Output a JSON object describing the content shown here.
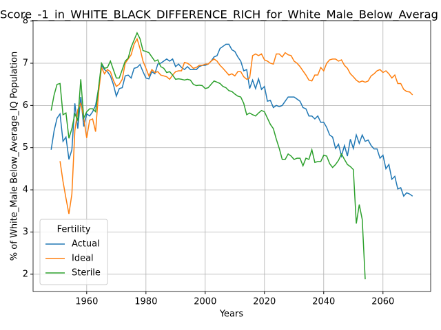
{
  "chart_data": {
    "type": "line",
    "title": "Score_-1_in_WHITE_BLACK_DIFFERENCE_RICH_for_White_Male_Below_Averag",
    "x_label": "Years",
    "y_label": "% of White_Male Below_Average_IQ Population",
    "x": [
      1948,
      1949,
      1950,
      1951,
      1952,
      1953,
      1954,
      1955,
      1956,
      1957,
      1958,
      1959,
      1960,
      1961,
      1962,
      1963,
      1964,
      1965,
      1966,
      1967,
      1968,
      1969,
      1970,
      1971,
      1972,
      1973,
      1974,
      1975,
      1976,
      1977,
      1978,
      1979,
      1980,
      1981,
      1982,
      1983,
      1984,
      1985,
      1986,
      1987,
      1988,
      1989,
      1990,
      1991,
      1992,
      1993,
      1994,
      1995,
      1996,
      1997,
      1998,
      1999,
      2000,
      2001,
      2002,
      2003,
      2004,
      2005,
      2006,
      2007,
      2008,
      2009,
      2010,
      2011,
      2012,
      2013,
      2014,
      2015,
      2016,
      2017,
      2018,
      2019,
      2020,
      2021,
      2022,
      2023,
      2024,
      2025,
      2026,
      2027,
      2028,
      2029,
      2030,
      2031,
      2032,
      2033,
      2034,
      2035,
      2036,
      2037,
      2038,
      2039,
      2040,
      2041,
      2042,
      2043,
      2044,
      2045,
      2046,
      2047,
      2048,
      2049,
      2050,
      2051,
      2052,
      2053,
      2054,
      2055,
      2056,
      2057,
      2058,
      2059,
      2060,
      2061,
      2062,
      2063,
      2064,
      2065,
      2066,
      2067,
      2068,
      2069,
      2070
    ],
    "series": [
      {
        "name": "Actual",
        "color": "#1f77b4",
        "values": [
          4.95,
          5.4,
          5.7,
          5.8,
          5.15,
          5.25,
          4.72,
          4.95,
          6.05,
          5.45,
          6.2,
          5.5,
          5.8,
          5.75,
          5.85,
          6.0,
          6.4,
          6.95,
          6.85,
          6.8,
          6.7,
          6.5,
          6.22,
          6.4,
          6.42,
          6.7,
          6.72,
          6.65,
          6.88,
          6.9,
          6.97,
          6.8,
          6.65,
          6.63,
          6.8,
          6.75,
          6.98,
          7.0,
          7.05,
          7.1,
          7.05,
          7.1,
          6.92,
          6.98,
          6.9,
          6.85,
          6.92,
          6.85,
          6.85,
          6.85,
          6.92,
          6.95,
          6.95,
          6.98,
          7.05,
          7.15,
          7.18,
          7.35,
          7.4,
          7.45,
          7.45,
          7.32,
          7.28,
          7.15,
          7.05,
          6.82,
          6.85,
          6.4,
          6.6,
          6.4,
          6.63,
          6.38,
          6.45,
          6.1,
          6.12,
          5.95,
          6.0,
          5.97,
          6.0,
          6.1,
          6.2,
          6.2,
          6.2,
          6.15,
          6.1,
          5.95,
          5.92,
          5.75,
          5.75,
          5.68,
          5.75,
          5.6,
          5.6,
          5.48,
          5.3,
          5.25,
          4.98,
          5.08,
          4.8,
          5.05,
          4.8,
          5.2,
          4.98,
          5.3,
          5.1,
          5.3,
          5.15,
          5.18,
          5.05,
          4.97,
          4.97,
          4.75,
          4.82,
          4.5,
          4.6,
          4.25,
          4.32,
          4.02,
          4.05,
          3.85,
          3.93,
          3.9,
          3.85
        ]
      },
      {
        "name": "Ideal",
        "color": "#ff7f0e",
        "values": [
          null,
          null,
          null,
          4.68,
          4.2,
          3.8,
          3.43,
          3.9,
          5.4,
          5.9,
          6.05,
          5.7,
          5.23,
          5.65,
          5.68,
          5.38,
          6.3,
          6.9,
          6.75,
          6.85,
          6.8,
          6.6,
          6.45,
          6.5,
          6.62,
          7.0,
          7.1,
          7.2,
          7.45,
          7.58,
          7.35,
          7.05,
          6.88,
          6.7,
          6.85,
          6.78,
          6.8,
          6.72,
          6.7,
          6.68,
          6.62,
          6.72,
          6.8,
          6.82,
          6.82,
          7.02,
          7.0,
          6.95,
          6.88,
          6.9,
          6.95,
          6.95,
          6.98,
          6.98,
          7.05,
          7.1,
          7.05,
          6.95,
          6.88,
          6.8,
          6.72,
          6.75,
          6.7,
          6.8,
          6.8,
          6.68,
          6.62,
          6.65,
          7.18,
          7.22,
          7.18,
          7.22,
          7.08,
          7.05,
          7.0,
          6.98,
          7.22,
          7.22,
          7.15,
          7.25,
          7.2,
          7.18,
          7.05,
          7.0,
          6.92,
          6.82,
          6.72,
          6.6,
          6.58,
          6.72,
          6.72,
          6.9,
          6.82,
          7.0,
          7.08,
          7.1,
          7.1,
          7.05,
          7.08,
          6.95,
          6.88,
          6.75,
          6.68,
          6.6,
          6.55,
          6.58,
          6.55,
          6.58,
          6.7,
          6.75,
          6.82,
          6.85,
          6.78,
          6.82,
          6.75,
          6.65,
          6.72,
          6.52,
          6.52,
          6.38,
          6.33,
          6.32,
          6.25
        ]
      },
      {
        "name": "Sterile",
        "color": "#2ca02c",
        "values": [
          5.88,
          6.25,
          6.5,
          6.52,
          5.78,
          5.82,
          5.22,
          5.45,
          5.8,
          5.65,
          6.62,
          5.7,
          5.85,
          5.92,
          5.92,
          5.85,
          6.42,
          7.0,
          6.88,
          6.9,
          7.05,
          6.85,
          6.65,
          6.65,
          6.85,
          7.05,
          7.12,
          7.38,
          7.55,
          7.72,
          7.58,
          7.3,
          7.28,
          7.25,
          7.15,
          7.05,
          7.08,
          6.92,
          6.88,
          6.78,
          6.8,
          6.72,
          6.62,
          6.63,
          6.62,
          6.6,
          6.62,
          6.6,
          6.5,
          6.47,
          6.48,
          6.47,
          6.4,
          6.42,
          6.5,
          6.58,
          6.55,
          6.52,
          6.45,
          6.42,
          6.35,
          6.33,
          6.27,
          6.22,
          6.2,
          6.05,
          5.78,
          5.82,
          5.78,
          5.75,
          5.82,
          5.88,
          5.85,
          5.7,
          5.55,
          5.45,
          5.2,
          4.98,
          4.72,
          4.72,
          4.85,
          4.8,
          4.72,
          4.75,
          4.75,
          4.57,
          4.75,
          4.72,
          4.95,
          4.65,
          4.67,
          4.67,
          4.82,
          4.8,
          4.62,
          4.53,
          4.6,
          4.7,
          4.85,
          4.72,
          4.6,
          4.55,
          4.48,
          3.2,
          3.65,
          3.3,
          1.88,
          null,
          null,
          null,
          null,
          null,
          null,
          null,
          null,
          null,
          null,
          null,
          null,
          null,
          null,
          null,
          null
        ]
      }
    ],
    "xlim": [
      1941.9,
      2076.1
    ],
    "xticks": [
      1960,
      1980,
      2000,
      2020,
      2040,
      2060
    ],
    "ylim": [
      1.59,
      8.01
    ],
    "yticks": [
      2,
      3,
      4,
      5,
      6,
      7,
      8
    ],
    "grid": true,
    "legend_title": "Fertility",
    "legend_loc": "lower left"
  }
}
